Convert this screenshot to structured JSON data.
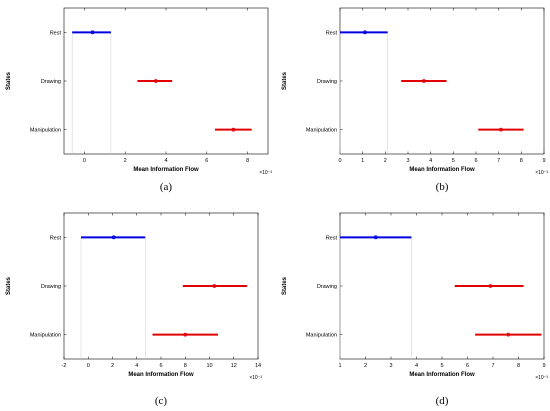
{
  "colors": {
    "rest": "#0000e0",
    "active": "#e00000",
    "guide": "#cfcfcf",
    "axis": "#000000"
  },
  "chart_data": [
    {
      "type": "errorbar",
      "panel_label": "(a)",
      "xlabel": "Mean Information Flow",
      "ylabel": "States",
      "x_exponent": "×10⁻³",
      "categories": [
        "Rest",
        "Drawing",
        "Manipulation"
      ],
      "series": [
        {
          "category": "Rest",
          "mean": 0.4,
          "low": -0.6,
          "high": 1.3,
          "color": "blue"
        },
        {
          "category": "Drawing",
          "mean": 3.5,
          "low": 2.6,
          "high": 4.3,
          "color": "red"
        },
        {
          "category": "Manipulation",
          "mean": 7.3,
          "low": 6.4,
          "high": 8.2,
          "color": "red"
        }
      ],
      "xlim": [
        -1,
        9
      ],
      "xticks": [
        0,
        2,
        4,
        6,
        8
      ],
      "grid": false
    },
    {
      "type": "errorbar",
      "panel_label": "(b)",
      "xlabel": "Mean Information Flow",
      "ylabel": "States",
      "x_exponent": "×10⁻³",
      "categories": [
        "Rest",
        "Drawing",
        "Manipulation"
      ],
      "series": [
        {
          "category": "Rest",
          "mean": 1.1,
          "low": 0.0,
          "high": 2.1,
          "color": "blue"
        },
        {
          "category": "Drawing",
          "mean": 3.7,
          "low": 2.7,
          "high": 4.7,
          "color": "red"
        },
        {
          "category": "Manipulation",
          "mean": 7.1,
          "low": 6.1,
          "high": 8.1,
          "color": "red"
        }
      ],
      "xlim": [
        0,
        9
      ],
      "xticks": [
        0,
        1,
        2,
        3,
        4,
        5,
        6,
        7,
        8,
        9
      ],
      "grid": false
    },
    {
      "type": "errorbar",
      "panel_label": "(c)",
      "xlabel": "Mean Information Flow",
      "ylabel": "States",
      "x_exponent": "×10⁻³",
      "categories": [
        "Rest",
        "Drawing",
        "Manipulation"
      ],
      "series": [
        {
          "category": "Rest",
          "mean": 2.1,
          "low": -0.6,
          "high": 4.7,
          "color": "blue"
        },
        {
          "category": "Drawing",
          "mean": 10.4,
          "low": 7.8,
          "high": 13.1,
          "color": "red"
        },
        {
          "category": "Manipulation",
          "mean": 8.0,
          "low": 5.3,
          "high": 10.7,
          "color": "red"
        }
      ],
      "xlim": [
        -2,
        14
      ],
      "xticks": [
        -2,
        0,
        2,
        4,
        6,
        8,
        10,
        12,
        14
      ],
      "grid": false
    },
    {
      "type": "errorbar",
      "panel_label": "(d)",
      "xlabel": "Mean Information Flow",
      "ylabel": "States",
      "x_exponent": "×10⁻³",
      "categories": [
        "Rest",
        "Drawing",
        "Manipulation"
      ],
      "series": [
        {
          "category": "Rest",
          "mean": 2.4,
          "low": 1.0,
          "high": 3.8,
          "color": "blue"
        },
        {
          "category": "Drawing",
          "mean": 6.9,
          "low": 5.5,
          "high": 8.2,
          "color": "red"
        },
        {
          "category": "Manipulation",
          "mean": 7.6,
          "low": 6.3,
          "high": 8.9,
          "color": "red"
        }
      ],
      "xlim": [
        1,
        9
      ],
      "xticks": [
        1,
        2,
        3,
        4,
        5,
        6,
        7,
        8,
        9
      ],
      "grid": false
    }
  ]
}
